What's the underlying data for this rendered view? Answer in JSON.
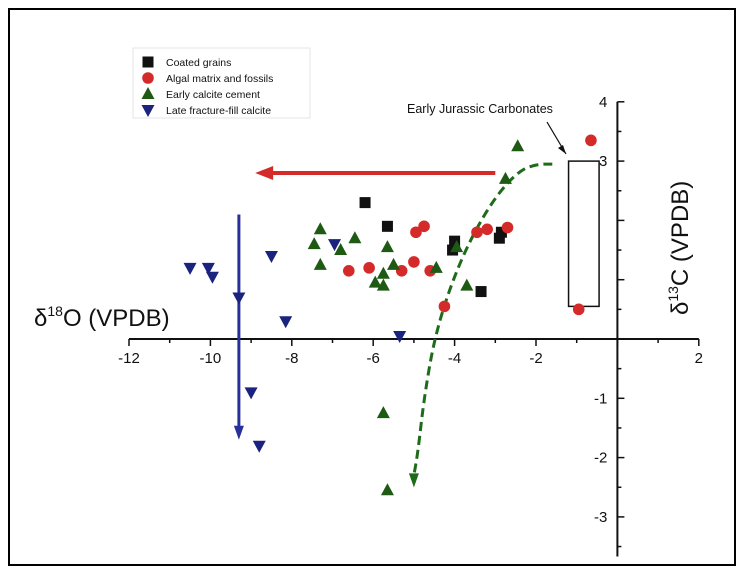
{
  "chart_data": {
    "type": "scatter",
    "xlabel_symbol": "δ",
    "xlabel_sup": "18",
    "xlabel_rest": "O (VPDB)",
    "ylabel_symbol": "δ",
    "ylabel_sup": "13",
    "ylabel_rest": "C (VPDB)",
    "xlim": [
      -12,
      2
    ],
    "ylim": [
      -3.5,
      4
    ],
    "x_ticks": [
      -12,
      -10,
      -8,
      -6,
      -4,
      -2,
      2
    ],
    "y_ticks": [
      -3,
      -2,
      -1,
      3,
      4
    ],
    "colors": {
      "coated": "#111111",
      "algal": "#d42a2a",
      "early": "#1e5a14",
      "late": "#1a237e",
      "red_arrow": "#d42a2a",
      "blue_arrow": "#28309a",
      "green_curve": "#1e6b1a"
    },
    "series": [
      {
        "name": "Coated grains",
        "marker": "square",
        "color": "#111111",
        "points": [
          [
            -6.2,
            2.3
          ],
          [
            -5.65,
            1.9
          ],
          [
            -4.0,
            1.65
          ],
          [
            -4.05,
            1.5
          ],
          [
            -2.85,
            1.8
          ],
          [
            -2.9,
            1.7
          ],
          [
            -3.35,
            0.8
          ]
        ]
      },
      {
        "name": "Algal matrix and fossils",
        "marker": "circle",
        "color": "#d42a2a",
        "points": [
          [
            -6.6,
            1.15
          ],
          [
            -6.1,
            1.2
          ],
          [
            -5.3,
            1.15
          ],
          [
            -5.0,
            1.3
          ],
          [
            -4.6,
            1.15
          ],
          [
            -4.95,
            1.8
          ],
          [
            -4.75,
            1.9
          ],
          [
            -3.45,
            1.8
          ],
          [
            -3.2,
            1.85
          ],
          [
            -2.7,
            1.88
          ],
          [
            -4.25,
            0.55
          ],
          [
            -0.65,
            3.35
          ],
          [
            -0.95,
            0.5
          ]
        ]
      },
      {
        "name": "Early calcite cement",
        "marker": "triangle-up",
        "color": "#1e5a14",
        "points": [
          [
            -7.3,
            1.85
          ],
          [
            -7.45,
            1.6
          ],
          [
            -7.3,
            1.25
          ],
          [
            -6.8,
            1.5
          ],
          [
            -6.45,
            1.7
          ],
          [
            -5.95,
            0.95
          ],
          [
            -5.75,
            1.1
          ],
          [
            -5.75,
            0.9
          ],
          [
            -5.5,
            1.25
          ],
          [
            -5.65,
            1.55
          ],
          [
            -4.45,
            1.2
          ],
          [
            -3.95,
            1.55
          ],
          [
            -3.7,
            0.9
          ],
          [
            -2.75,
            2.7
          ],
          [
            -2.45,
            3.25
          ],
          [
            -5.75,
            -1.25
          ],
          [
            -5.65,
            -2.55
          ]
        ]
      },
      {
        "name": "Late fracture-fill calcite",
        "marker": "triangle-down",
        "color": "#1a237e",
        "points": [
          [
            -10.5,
            1.2
          ],
          [
            -10.05,
            1.2
          ],
          [
            -9.95,
            1.05
          ],
          [
            -8.5,
            1.4
          ],
          [
            -8.15,
            0.3
          ],
          [
            -6.95,
            1.6
          ],
          [
            -9.3,
            0.7
          ],
          [
            -9.0,
            -0.9
          ],
          [
            -8.8,
            -1.8
          ],
          [
            -5.35,
            0.05
          ]
        ]
      }
    ],
    "annotation": "Early Jurassic Carbonates",
    "box": {
      "x0": -1.2,
      "x1": -0.45,
      "y0": 0.55,
      "y1": 3.0
    },
    "red_arrow": {
      "from": [
        -3.0,
        2.8
      ],
      "to": [
        -8.9,
        2.8
      ]
    },
    "blue_arrow": {
      "x": -9.3,
      "y_start": 2.1,
      "y_end": -1.7
    },
    "green_curve": [
      [
        -1.6,
        2.95
      ],
      [
        -1.95,
        2.95
      ],
      [
        -2.4,
        2.85
      ],
      [
        -3.0,
        2.4
      ],
      [
        -3.6,
        1.7
      ],
      [
        -4.1,
        0.9
      ],
      [
        -4.5,
        0.0
      ],
      [
        -4.75,
        -1.0
      ],
      [
        -4.9,
        -1.9
      ],
      [
        -5.0,
        -2.3
      ]
    ],
    "legend": "top-left",
    "grid": false
  }
}
